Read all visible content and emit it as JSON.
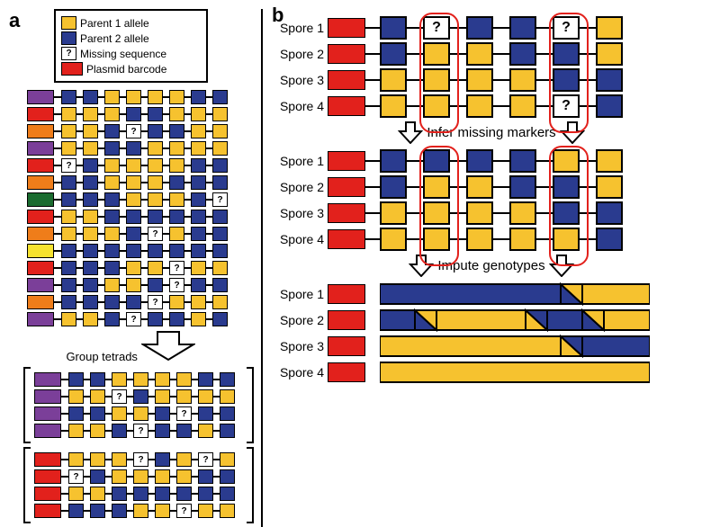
{
  "colors": {
    "parent1": "#f6c22f",
    "parent2": "#2a3b8f",
    "missing": "#ffffff",
    "plasmid": "#e2211c",
    "barcodes": {
      "purple": "#7b3f99",
      "red": "#e2211c",
      "orange": "#ef7d1a",
      "darkgreen": "#1a6b2f",
      "yellow": "#f6e22f"
    },
    "highlight": "#e2211c"
  },
  "legend": [
    {
      "key": "parent1",
      "label": "Parent 1 allele"
    },
    {
      "key": "parent2",
      "label": "Parent 2 allele"
    },
    {
      "key": "missing",
      "label": "Missing sequence",
      "glyph": "?"
    },
    {
      "key": "plasmid",
      "label": "Plasmid barcode"
    }
  ],
  "panelA": {
    "label": "a",
    "rows": [
      {
        "barcode": "purple",
        "markers": [
          "2",
          "2",
          "1",
          "1",
          "1",
          "1",
          "2",
          "2"
        ]
      },
      {
        "barcode": "red",
        "markers": [
          "1",
          "1",
          "1",
          "2",
          "2",
          "1",
          "1",
          "1"
        ]
      },
      {
        "barcode": "orange",
        "markers": [
          "1",
          "1",
          "2",
          "?",
          "2",
          "2",
          "1",
          "1"
        ]
      },
      {
        "barcode": "purple",
        "markers": [
          "1",
          "1",
          "2",
          "2",
          "1",
          "1",
          "1",
          "1"
        ]
      },
      {
        "barcode": "red",
        "markers": [
          "?",
          "2",
          "1",
          "1",
          "1",
          "1",
          "2",
          "2"
        ]
      },
      {
        "barcode": "orange",
        "markers": [
          "2",
          "2",
          "1",
          "1",
          "1",
          "2",
          "2",
          "2"
        ]
      },
      {
        "barcode": "darkgreen",
        "markers": [
          "2",
          "2",
          "2",
          "1",
          "1",
          "1",
          "2",
          "?"
        ]
      },
      {
        "barcode": "red",
        "markers": [
          "1",
          "1",
          "2",
          "2",
          "2",
          "2",
          "2",
          "2"
        ]
      },
      {
        "barcode": "orange",
        "markers": [
          "1",
          "1",
          "1",
          "2",
          "?",
          "1",
          "2",
          "2"
        ]
      },
      {
        "barcode": "yellow",
        "markers": [
          "2",
          "2",
          "2",
          "2",
          "2",
          "2",
          "2",
          "2"
        ]
      },
      {
        "barcode": "red",
        "markers": [
          "2",
          "2",
          "2",
          "1",
          "1",
          "?",
          "1",
          "1"
        ]
      },
      {
        "barcode": "purple",
        "markers": [
          "2",
          "2",
          "1",
          "1",
          "2",
          "?",
          "2",
          "2"
        ]
      },
      {
        "barcode": "orange",
        "markers": [
          "2",
          "2",
          "2",
          "2",
          "?",
          "1",
          "1",
          "1"
        ]
      },
      {
        "barcode": "purple",
        "markers": [
          "1",
          "1",
          "2",
          "?",
          "2",
          "2",
          "1",
          "2"
        ]
      }
    ],
    "arrowLabel": "Group tetrads",
    "groups": [
      {
        "barcode": "purple",
        "rows": [
          [
            "2",
            "2",
            "1",
            "1",
            "1",
            "1",
            "2",
            "2"
          ],
          [
            "1",
            "1",
            "?",
            "2",
            "1",
            "1",
            "1",
            "1"
          ],
          [
            "2",
            "2",
            "1",
            "1",
            "2",
            "?",
            "2",
            "2"
          ],
          [
            "1",
            "1",
            "2",
            "?",
            "2",
            "2",
            "1",
            "2"
          ]
        ]
      },
      {
        "barcode": "red",
        "rows": [
          [
            "1",
            "1",
            "1",
            "?",
            "2",
            "1",
            "?",
            "1"
          ],
          [
            "?",
            "2",
            "1",
            "1",
            "1",
            "1",
            "2",
            "2"
          ],
          [
            "1",
            "1",
            "2",
            "2",
            "2",
            "2",
            "2",
            "2"
          ],
          [
            "2",
            "2",
            "2",
            "1",
            "1",
            "?",
            "1",
            "1"
          ]
        ]
      }
    ]
  },
  "panelB": {
    "label": "b",
    "spore_labels": [
      "Spore 1",
      "Spore 2",
      "Spore 3",
      "Spore 4"
    ],
    "block1": {
      "barcode": "plasmid",
      "rows": [
        [
          "2",
          "?",
          "2",
          "2",
          "?",
          "1"
        ],
        [
          "2",
          "1",
          "1",
          "2",
          "2",
          "1"
        ],
        [
          "1",
          "1",
          "1",
          "1",
          "2",
          "2"
        ],
        [
          "1",
          "1",
          "1",
          "1",
          "?",
          "2"
        ]
      ],
      "highlight_cols": [
        1,
        4
      ]
    },
    "arrow1": "Infer missing markers",
    "block2": {
      "barcode": "plasmid",
      "rows": [
        [
          "2",
          "2",
          "2",
          "2",
          "1",
          "1"
        ],
        [
          "2",
          "1",
          "1",
          "2",
          "2",
          "1"
        ],
        [
          "1",
          "1",
          "1",
          "1",
          "2",
          "2"
        ],
        [
          "1",
          "1",
          "1",
          "1",
          "1",
          "2"
        ]
      ],
      "highlight_cols": [
        1,
        4
      ]
    },
    "arrow2": "Impute genotypes",
    "block3": {
      "barcode": "plasmid",
      "rows_impute": [
        {
          "segments": [
            {
              "c": "2",
              "w": 0.67
            },
            {
              "cross_to": "1",
              "w": 0.08
            },
            {
              "c": "1",
              "w": 0.25
            }
          ]
        },
        {
          "segments": [
            {
              "c": "2",
              "w": 0.13
            },
            {
              "cross_to": "1",
              "w": 0.08
            },
            {
              "c": "1",
              "w": 0.33
            },
            {
              "cross_to": "2",
              "w": 0.08
            },
            {
              "c": "2",
              "w": 0.13
            },
            {
              "cross_to": "1",
              "w": 0.08
            },
            {
              "c": "1",
              "w": 0.17
            }
          ]
        },
        {
          "segments": [
            {
              "c": "1",
              "w": 0.67
            },
            {
              "cross_to": "2",
              "w": 0.08
            },
            {
              "c": "2",
              "w": 0.25
            }
          ]
        },
        {
          "segments": [
            {
              "c": "1",
              "w": 1.0
            }
          ]
        }
      ]
    }
  }
}
